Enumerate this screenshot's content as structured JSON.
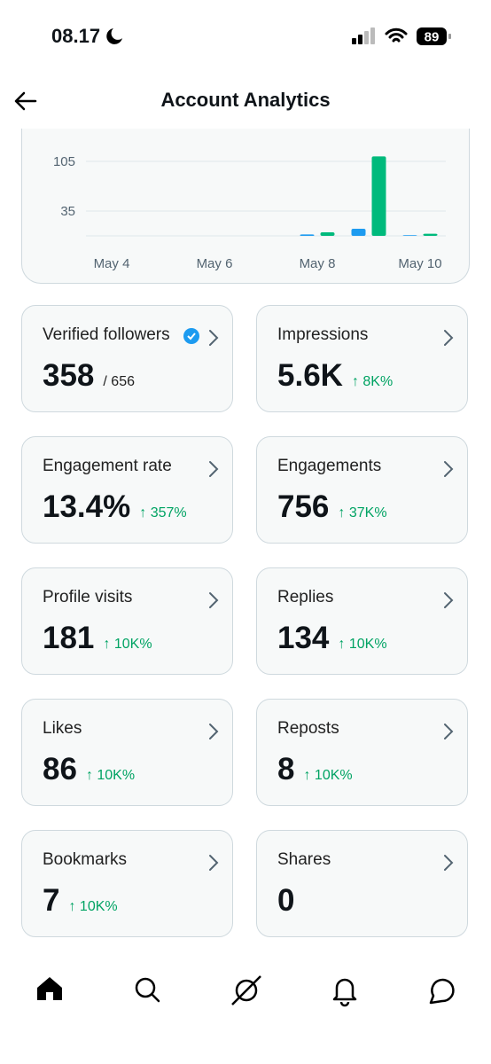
{
  "status_bar": {
    "time": "08.17",
    "battery": "89"
  },
  "header": {
    "title": "Account Analytics"
  },
  "chart_data": {
    "type": "bar",
    "categories": [
      "May 4",
      null,
      "May 6",
      null,
      "May 8",
      null,
      "May 10"
    ],
    "series": [
      {
        "color": "#1d9bf0",
        "values": [
          0,
          0,
          0,
          0,
          2,
          10,
          1
        ]
      },
      {
        "color": "#00ba7c",
        "values": [
          0,
          0,
          0,
          0,
          5,
          112,
          3
        ]
      }
    ],
    "ylim": [
      0,
      120
    ],
    "yticks": [
      35,
      105
    ],
    "grid": true
  },
  "cards": [
    {
      "label": "Verified followers",
      "value": "358",
      "total": "/ 656",
      "verified": true
    },
    {
      "label": "Impressions",
      "value": "5.6K",
      "change": "↑ 8K%"
    },
    {
      "label": "Engagement rate",
      "value": "13.4%",
      "change": "↑ 357%"
    },
    {
      "label": "Engagements",
      "value": "756",
      "change": "↑ 37K%"
    },
    {
      "label": "Profile visits",
      "value": "181",
      "change": "↑ 10K%"
    },
    {
      "label": "Replies",
      "value": "134",
      "change": "↑ 10K%"
    },
    {
      "label": "Likes",
      "value": "86",
      "change": "↑ 10K%"
    },
    {
      "label": "Reposts",
      "value": "8",
      "change": "↑ 10K%"
    },
    {
      "label": "Bookmarks",
      "value": "7",
      "change": "↑ 10K%"
    },
    {
      "label": "Shares",
      "value": "0"
    }
  ]
}
